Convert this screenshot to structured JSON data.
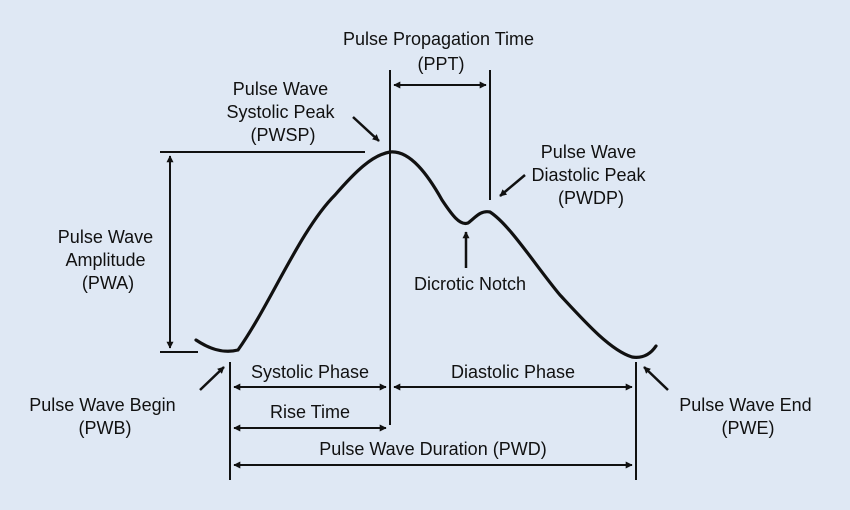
{
  "colors": {
    "background": "#dfe8f4",
    "ink": "#111111"
  },
  "labels": {
    "ppt": [
      "Pulse Propagation Time",
      "(PPT)"
    ],
    "pwsp": [
      "Pulse Wave",
      "Systolic Peak",
      "(PWSP)"
    ],
    "pwdp": [
      "Pulse Wave",
      "Diastolic Peak",
      "(PWDP)"
    ],
    "pwa": [
      "Pulse Wave",
      "Amplitude",
      "(PWA)"
    ],
    "dicrotic_notch": "Dicrotic Notch",
    "pwb": [
      "Pulse Wave Begin",
      "(PWB)"
    ],
    "pwe": [
      "Pulse Wave End",
      "(PWE)"
    ],
    "systolic_phase": "Systolic Phase",
    "diastolic_phase": "Diastolic Phase",
    "rise_time": "Rise Time",
    "pwd": "Pulse Wave Duration (PWD)"
  }
}
